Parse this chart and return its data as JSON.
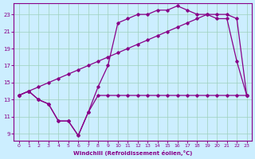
{
  "xlabel": "Windchill (Refroidissement éolien,°C)",
  "bg_color": "#cceeff",
  "grid_color": "#9dd0bb",
  "line_color": "#880088",
  "y_ticks": [
    9,
    11,
    13,
    15,
    17,
    19,
    21,
    23
  ],
  "x_ticks": [
    0,
    1,
    2,
    3,
    4,
    5,
    6,
    7,
    8,
    9,
    10,
    11,
    12,
    13,
    14,
    15,
    16,
    17,
    18,
    19,
    20,
    21,
    22,
    23
  ],
  "ylim": [
    8.2,
    24.3
  ],
  "xlim": [
    -0.5,
    23.5
  ],
  "line_flat_x": [
    0,
    1,
    2,
    3,
    4,
    5,
    6,
    7,
    8,
    9,
    10,
    11,
    12,
    13,
    14,
    15,
    16,
    17,
    18,
    19,
    20,
    21,
    22,
    23
  ],
  "line_flat_y": [
    13.5,
    14.0,
    13.0,
    12.5,
    10.5,
    10.5,
    8.8,
    11.5,
    13.5,
    13.5,
    13.5,
    13.5,
    13.5,
    13.5,
    13.5,
    13.5,
    13.5,
    13.5,
    13.5,
    13.5,
    13.5,
    13.5,
    13.5,
    13.5
  ],
  "line_diag_x": [
    0,
    1,
    2,
    3,
    4,
    5,
    6,
    7,
    8,
    9,
    10,
    11,
    12,
    13,
    14,
    15,
    16,
    17,
    18,
    19,
    20,
    21,
    22,
    23
  ],
  "line_diag_y": [
    13.5,
    14.0,
    14.5,
    15.0,
    15.5,
    16.0,
    16.5,
    17.0,
    17.5,
    18.0,
    18.5,
    19.0,
    19.5,
    20.0,
    20.5,
    21.0,
    21.5,
    22.0,
    22.5,
    23.0,
    23.0,
    23.0,
    22.5,
    13.5
  ],
  "line_peak_x": [
    0,
    1,
    2,
    3,
    4,
    5,
    6,
    7,
    8,
    9,
    10,
    11,
    12,
    13,
    14,
    15,
    16,
    17,
    18,
    19,
    20,
    21,
    22,
    23
  ],
  "line_peak_y": [
    13.5,
    14.0,
    13.0,
    12.5,
    10.5,
    10.5,
    8.8,
    11.5,
    14.5,
    17.0,
    22.0,
    22.5,
    23.0,
    23.0,
    23.5,
    23.5,
    24.0,
    23.5,
    23.0,
    23.0,
    22.5,
    22.5,
    17.5,
    13.5
  ]
}
